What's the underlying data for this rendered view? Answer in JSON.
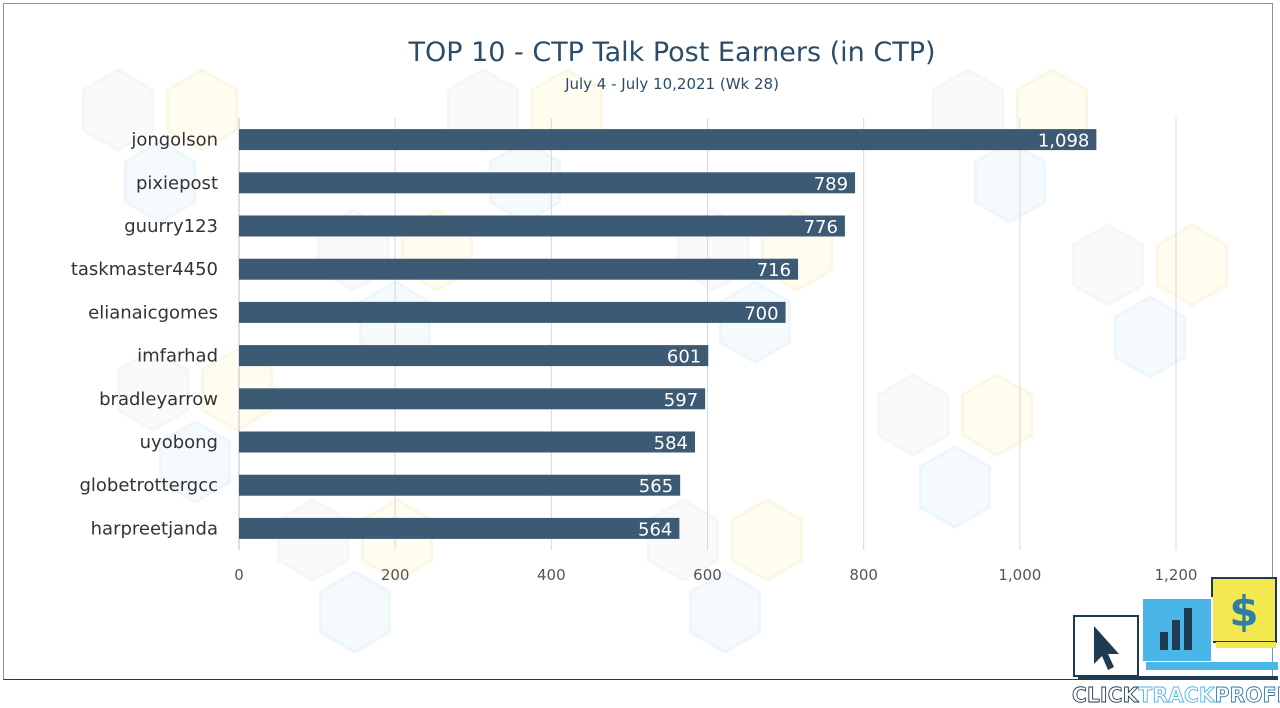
{
  "chart_data": {
    "type": "bar",
    "orientation": "horizontal",
    "title": "TOP 10 - CTP Talk Post Earners (in CTP)",
    "subtitle": "July 4 - July 10,2021 (Wk 28)",
    "categories": [
      "jongolson",
      "pixiepost",
      "guurry123",
      "taskmaster4450",
      "elianaicgomes",
      "imfarhad",
      "bradleyarrow",
      "uyobong",
      "globetrottergcc",
      "harpreetjanda"
    ],
    "values": [
      1098,
      789,
      776,
      716,
      700,
      601,
      597,
      584,
      565,
      564
    ],
    "value_labels": [
      "1,098",
      "789",
      "776",
      "716",
      "700",
      "601",
      "597",
      "584",
      "565",
      "564"
    ],
    "xlim": [
      0,
      1200
    ],
    "x_ticks": [
      0,
      200,
      400,
      600,
      800,
      1000,
      1200
    ],
    "x_tick_labels": [
      "0",
      "200",
      "400",
      "600",
      "800",
      "1,000",
      "1,200"
    ],
    "grid": true,
    "legend": false,
    "xlabel": "",
    "ylabel": "",
    "colors": {
      "bar": "#3c5a73",
      "title": "#2b4d69",
      "gridline": "#d9d9d9"
    }
  },
  "logo": {
    "word_dark": "CLICK",
    "word_mid": "TRACK",
    "word_light": "PROFIT",
    "symbol_dollar": "$",
    "colors": {
      "navy": "#1f3b52",
      "blue": "#4ab6e8",
      "yellow": "#f3e84f",
      "teal": "#2e7ea6"
    }
  }
}
